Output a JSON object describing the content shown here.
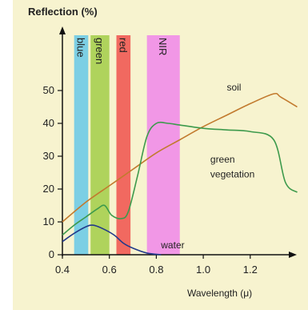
{
  "chart_data": {
    "type": "line",
    "title": "",
    "ylabel": "Reflection (%)",
    "xlabel": "Wavelength (μ)",
    "xlim": [
      0.4,
      1.4
    ],
    "ylim": [
      0,
      60
    ],
    "x_ticks": [
      "0.4",
      "0.6",
      "0.8",
      "1.0",
      "1.2"
    ],
    "y_ticks": [
      "0",
      "10",
      "20",
      "30",
      "40",
      "50"
    ],
    "bands": [
      {
        "name": "blue",
        "range": [
          0.45,
          0.51
        ],
        "color": "#6ecbe6"
      },
      {
        "name": "green",
        "range": [
          0.52,
          0.6
        ],
        "color": "#a6cf4f"
      },
      {
        "name": "red",
        "range": [
          0.63,
          0.69
        ],
        "color": "#ef5a53"
      },
      {
        "name": "NIR",
        "range": [
          0.76,
          0.9
        ],
        "color": "#f08de8"
      }
    ],
    "series": [
      {
        "name": "soil",
        "color": "#c27a2e",
        "x": [
          0.4,
          0.5,
          0.6,
          0.7,
          0.8,
          0.9,
          1.0,
          1.1,
          1.2,
          1.3,
          1.33,
          1.4
        ],
        "y": [
          10,
          16,
          21,
          26,
          31,
          35,
          39,
          42.5,
          46,
          49,
          48,
          45
        ]
      },
      {
        "name": "green vegetation",
        "color": "#3d9a4c",
        "x": [
          0.4,
          0.45,
          0.5,
          0.55,
          0.58,
          0.61,
          0.65,
          0.68,
          0.72,
          0.76,
          0.8,
          0.85,
          0.9,
          1.0,
          1.1,
          1.2,
          1.3,
          1.35,
          1.4
        ],
        "y": [
          6,
          9,
          11.5,
          14,
          15,
          12,
          11,
          13,
          24,
          36,
          40,
          40,
          39.5,
          38.5,
          38,
          37.5,
          35,
          22,
          19
        ]
      },
      {
        "name": "water",
        "color": "#223a8a",
        "x": [
          0.4,
          0.45,
          0.5,
          0.53,
          0.57,
          0.62,
          0.66,
          0.7,
          0.76,
          0.82
        ],
        "y": [
          4,
          6.5,
          8.5,
          9,
          8,
          6,
          3.5,
          2,
          0.5,
          0
        ]
      }
    ],
    "annotations": [
      {
        "text": "soil",
        "x": 1.1,
        "y": 50
      },
      {
        "text": "green",
        "x": 1.03,
        "y": 28
      },
      {
        "text": "vegetation",
        "x": 1.03,
        "y": 23.5
      },
      {
        "text": "water",
        "x": 0.82,
        "y": 2
      }
    ]
  }
}
